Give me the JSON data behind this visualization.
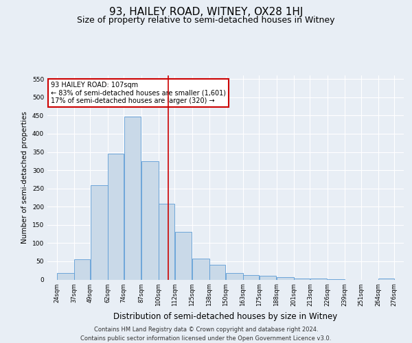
{
  "title": "93, HAILEY ROAD, WITNEY, OX28 1HJ",
  "subtitle": "Size of property relative to semi-detached houses in Witney",
  "xlabel": "Distribution of semi-detached houses by size in Witney",
  "ylabel": "Number of semi-detached properties",
  "footnote1": "Contains HM Land Registry data © Crown copyright and database right 2024.",
  "footnote2": "Contains public sector information licensed under the Open Government Licence v3.0.",
  "annotation_line1": "93 HAILEY ROAD: 107sqm",
  "annotation_line2": "← 83% of semi-detached houses are smaller (1,601)",
  "annotation_line3": "17% of semi-detached houses are larger (320) →",
  "property_size": 107,
  "bar_left_edges": [
    24,
    37,
    49,
    62,
    74,
    87,
    100,
    112,
    125,
    138,
    150,
    163,
    175,
    188,
    201,
    213,
    226,
    239,
    251,
    264
  ],
  "bar_widths": [
    13,
    12,
    13,
    12,
    13,
    13,
    12,
    13,
    13,
    12,
    13,
    12,
    13,
    13,
    12,
    13,
    13,
    12,
    13,
    12
  ],
  "bar_heights": [
    18,
    56,
    258,
    345,
    448,
    325,
    208,
    130,
    57,
    40,
    18,
    13,
    10,
    7,
    3,
    2,
    1,
    0,
    0,
    2
  ],
  "bar_color": "#c9d9e8",
  "bar_edge_color": "#5b9bd5",
  "vline_color": "#cc0000",
  "vline_x": 107,
  "ylim": [
    0,
    560
  ],
  "yticks": [
    0,
    50,
    100,
    150,
    200,
    250,
    300,
    350,
    400,
    450,
    500,
    550
  ],
  "bg_color": "#e8eef5",
  "ax_bg_color": "#e8eef5",
  "grid_color": "#ffffff",
  "title_fontsize": 11,
  "subtitle_fontsize": 9,
  "ylabel_fontsize": 7.5,
  "xlabel_fontsize": 8.5,
  "tick_fontsize": 6,
  "footnote_fontsize": 6,
  "annotation_fontsize": 7,
  "tick_labels": [
    "24sqm",
    "37sqm",
    "49sqm",
    "62sqm",
    "74sqm",
    "87sqm",
    "100sqm",
    "112sqm",
    "125sqm",
    "138sqm",
    "150sqm",
    "163sqm",
    "175sqm",
    "188sqm",
    "201sqm",
    "213sqm",
    "226sqm",
    "239sqm",
    "251sqm",
    "264sqm",
    "276sqm"
  ],
  "xlim_left": 17,
  "xlim_right": 283
}
